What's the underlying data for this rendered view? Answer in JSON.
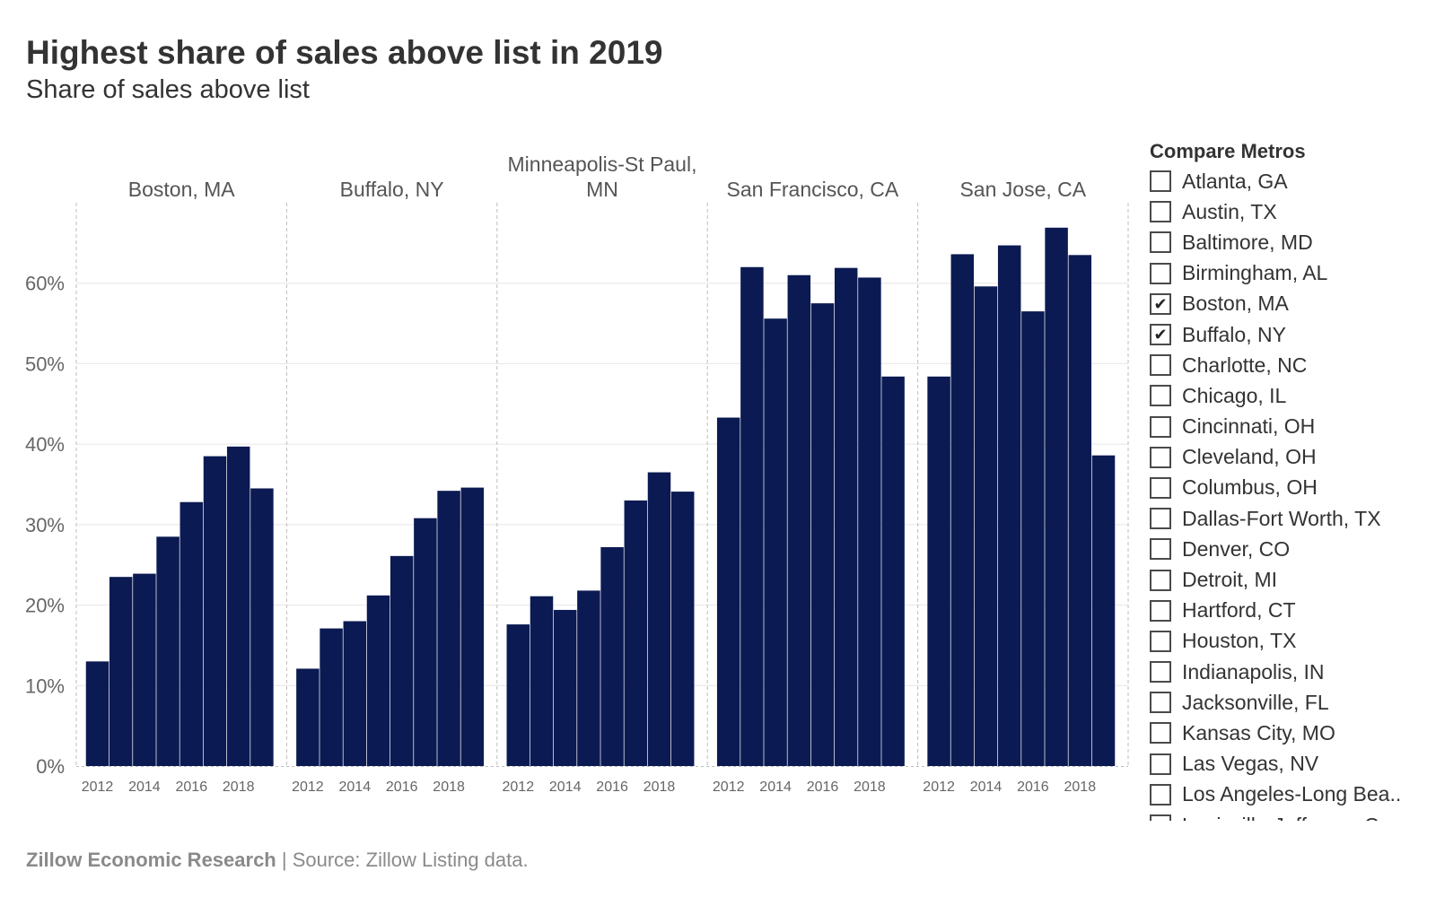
{
  "title": "Highest share of sales above list in 2019",
  "subtitle": "Share of sales above list",
  "footer": {
    "org": "Zillow Economic Research",
    "separator": " | ",
    "source": "Source: Zillow Listing data."
  },
  "colors": {
    "bar": "#0b1a52",
    "grid": "#e6e6e6",
    "divider": "#bdbdbd",
    "text": "#333333",
    "muted": "#666666"
  },
  "chart_data": {
    "type": "bar",
    "ylim": [
      0,
      0.7
    ],
    "y_ticks": [
      0,
      0.1,
      0.2,
      0.3,
      0.4,
      0.5,
      0.6
    ],
    "y_tick_labels": [
      "0%",
      "10%",
      "20%",
      "30%",
      "40%",
      "50%",
      "60%"
    ],
    "categories": [
      "2012",
      "2013",
      "2014",
      "2015",
      "2016",
      "2017",
      "2018",
      "2019"
    ],
    "x_tick_labels": [
      "2012",
      "2014",
      "2016",
      "2018"
    ],
    "grid": "horizontal",
    "panels": [
      {
        "label_lines": [
          "Boston, MA"
        ],
        "values": [
          0.13,
          0.235,
          0.239,
          0.285,
          0.328,
          0.385,
          0.397,
          0.345
        ]
      },
      {
        "label_lines": [
          "Buffalo, NY"
        ],
        "values": [
          0.121,
          0.171,
          0.18,
          0.212,
          0.261,
          0.308,
          0.342,
          0.346
        ]
      },
      {
        "label_lines": [
          "Minneapolis-St Paul,",
          "MN"
        ],
        "values": [
          0.176,
          0.211,
          0.194,
          0.218,
          0.272,
          0.33,
          0.365,
          0.341
        ]
      },
      {
        "label_lines": [
          "San Francisco, CA"
        ],
        "values": [
          0.433,
          0.62,
          0.556,
          0.61,
          0.575,
          0.619,
          0.607,
          0.484
        ]
      },
      {
        "label_lines": [
          "San Jose, CA"
        ],
        "values": [
          0.484,
          0.636,
          0.596,
          0.647,
          0.565,
          0.669,
          0.635,
          0.386
        ]
      }
    ]
  },
  "legend": {
    "title": "Compare Metros",
    "items": [
      {
        "label": "Atlanta, GA",
        "checked": false
      },
      {
        "label": "Austin, TX",
        "checked": false
      },
      {
        "label": "Baltimore, MD",
        "checked": false
      },
      {
        "label": "Birmingham, AL",
        "checked": false
      },
      {
        "label": "Boston, MA",
        "checked": true
      },
      {
        "label": "Buffalo, NY",
        "checked": true
      },
      {
        "label": "Charlotte, NC",
        "checked": false
      },
      {
        "label": "Chicago, IL",
        "checked": false
      },
      {
        "label": "Cincinnati, OH",
        "checked": false
      },
      {
        "label": "Cleveland, OH",
        "checked": false
      },
      {
        "label": "Columbus, OH",
        "checked": false
      },
      {
        "label": "Dallas-Fort Worth, TX",
        "checked": false
      },
      {
        "label": "Denver, CO",
        "checked": false
      },
      {
        "label": "Detroit, MI",
        "checked": false
      },
      {
        "label": "Hartford, CT",
        "checked": false
      },
      {
        "label": "Houston, TX",
        "checked": false
      },
      {
        "label": "Indianapolis, IN",
        "checked": false
      },
      {
        "label": "Jacksonville, FL",
        "checked": false
      },
      {
        "label": "Kansas City, MO",
        "checked": false
      },
      {
        "label": "Las Vegas, NV",
        "checked": false
      },
      {
        "label": "Los Angeles-Long Bea..",
        "checked": false
      },
      {
        "label": "Louisville-Jefferson Co..",
        "checked": false
      }
    ],
    "check_mark": "✔"
  }
}
